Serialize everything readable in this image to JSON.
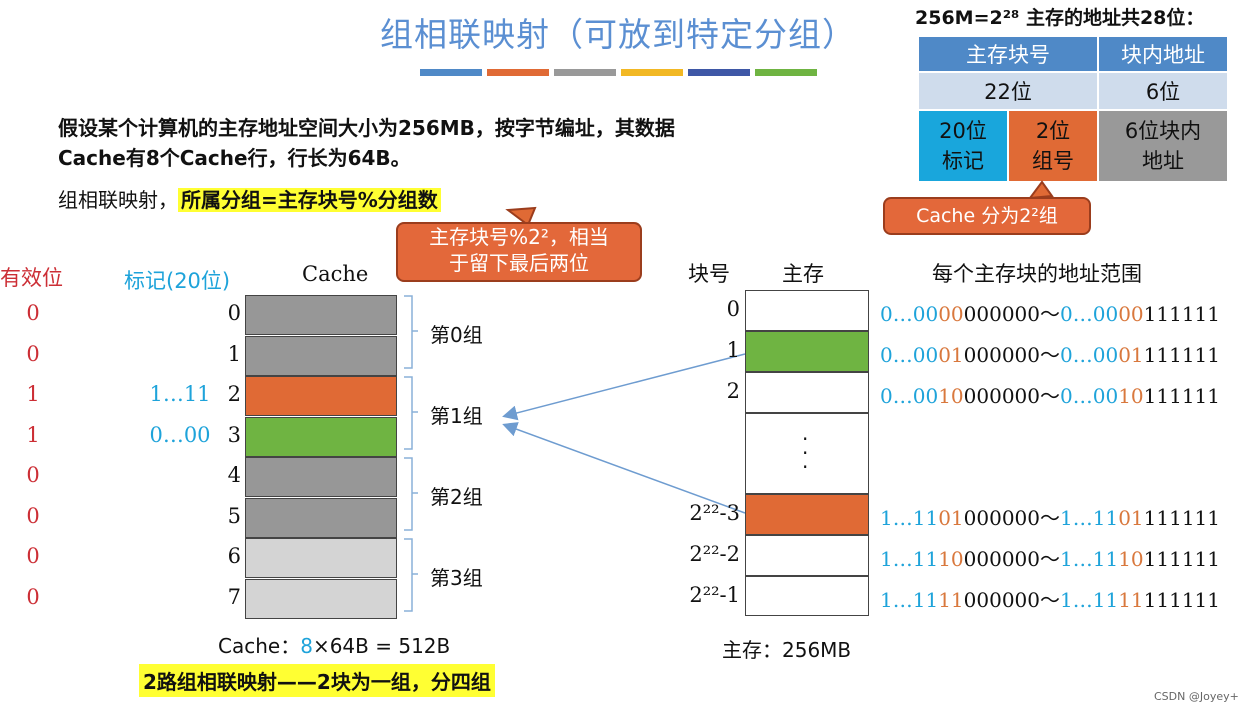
{
  "title": "组相联映射（可放到特定分组）",
  "stripe_colors": [
    "#4f89c7",
    "#e06a35",
    "#999999",
    "#f2b824",
    "#3e57a6",
    "#6fb442"
  ],
  "intro": "假设某个计算机的主存地址空间大小为256MB，按字节编址，其数据Cache有8个Cache行，行长为64B。",
  "rule_prefix": "组相联映射，",
  "rule_highlight": "所属分组=主存块号%分组数",
  "callout_mod_line1": "主存块号%2²，相当",
  "callout_mod_line2": "于留下最后两位",
  "addr_header": "256M=2²⁸ 主存的地址共28位：",
  "addr_table": {
    "h1": "主存块号",
    "h2": "块内地址",
    "r1c1": "22位",
    "r1c2": "6位",
    "r2c1a": "20位",
    "r2c1b": "标记",
    "r2c2a": "2位",
    "r2c2b": "组号",
    "r2c3a": "6位块内",
    "r2c3b": "地址"
  },
  "callout_groups": "Cache 分为2²组",
  "col_valid": "有效位",
  "col_tag": "标记(20位)",
  "col_cache": "Cache",
  "valid_bits": [
    "0",
    "0",
    "1",
    "1",
    "0",
    "0",
    "0",
    "0"
  ],
  "tags": [
    "",
    "",
    "1…11",
    "0…00",
    "",
    "",
    "",
    ""
  ],
  "cache_line_numbers": [
    "0",
    "1",
    "2",
    "3",
    "4",
    "5",
    "6",
    "7"
  ],
  "cache_line_colors": [
    "#979797",
    "#979797",
    "#e06a35",
    "#6fb442",
    "#979797",
    "#979797",
    "#d4d4d4",
    "#d4d4d4"
  ],
  "groups": [
    "第0组",
    "第1组",
    "第2组",
    "第3组"
  ],
  "cache_caption_prefix": "Cache：",
  "cache_caption_count": "8",
  "cache_caption_rest": "×64B = 512B",
  "mem_col_blockno": "块号",
  "mem_col_mem": "主存",
  "mem_col_range": "每个主存块的地址范围",
  "mem_blocks": [
    {
      "label": "0",
      "color": "#ffffff"
    },
    {
      "label": "1",
      "color": "#6fb442"
    },
    {
      "label": "2",
      "color": "#ffffff"
    },
    {
      "label": "",
      "color": "#ffffff"
    },
    {
      "label": "2²²-3",
      "color": "#e06a35"
    },
    {
      "label": "2²²-2",
      "color": "#ffffff"
    },
    {
      "label": "2²²-1",
      "color": "#ffffff"
    }
  ],
  "mem_ranges": [
    {
      "a1": "0…00",
      "a2": "00",
      "a3": "000000",
      "sep": "～",
      "b1": "0…00",
      "b2": "00",
      "b3": "111111"
    },
    {
      "a1": "0…00",
      "a2": "01",
      "a3": "000000",
      "sep": "～",
      "b1": "0…00",
      "b2": "01",
      "b3": "111111"
    },
    {
      "a1": "0…00",
      "a2": "10",
      "a3": "000000",
      "sep": "～",
      "b1": "0…00",
      "b2": "10",
      "b3": "111111"
    },
    {
      "a1": "1…11",
      "a2": "01",
      "a3": "000000",
      "sep": "～",
      "b1": "1…11",
      "b2": "01",
      "b3": "111111"
    },
    {
      "a1": "1…11",
      "a2": "10",
      "a3": "000000",
      "sep": "～",
      "b1": "1…11",
      "b2": "10",
      "b3": "111111"
    },
    {
      "a1": "1…11",
      "a2": "11",
      "a3": "000000",
      "sep": "～",
      "b1": "1…11",
      "b2": "11",
      "b3": "111111"
    }
  ],
  "mem_caption": "主存：256MB",
  "footer": "2路组相联映射——2块为一组，分四组",
  "watermark": "CSDN @Joyey+"
}
